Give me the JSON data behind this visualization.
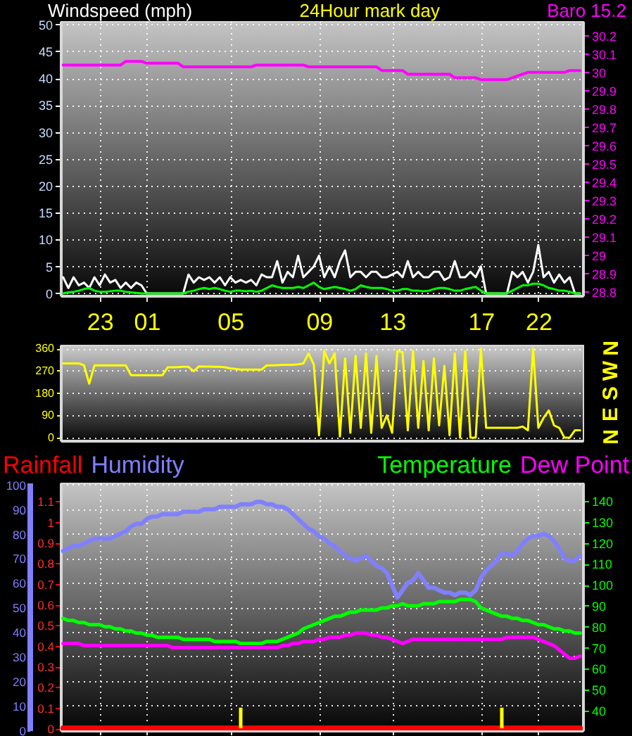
{
  "chart_data": [
    {
      "type": "line",
      "legend": "top",
      "grid": true,
      "annotations": [
        "24Hour mark day"
      ],
      "categories": [
        null,
        null,
        null,
        null,
        null,
        null,
        null,
        "23",
        null,
        null,
        null,
        null,
        null,
        null,
        null,
        null,
        "01",
        null,
        null,
        null,
        null,
        null,
        null,
        null,
        null,
        null,
        null,
        null,
        null,
        null,
        null,
        null,
        "05",
        null,
        null,
        null,
        null,
        null,
        null,
        null,
        null,
        null,
        null,
        null,
        null,
        null,
        null,
        null,
        null,
        "09",
        null,
        null,
        null,
        null,
        null,
        null,
        null,
        null,
        null,
        null,
        null,
        null,
        null,
        "13",
        null,
        null,
        null,
        null,
        null,
        null,
        null,
        null,
        null,
        null,
        null,
        null,
        null,
        null,
        null,
        null,
        "17",
        null,
        null,
        null,
        null,
        null,
        null,
        null,
        null,
        null,
        null,
        "22",
        null,
        null,
        null,
        null,
        null,
        null,
        null,
        null
      ],
      "ylim": [
        -0.4,
        50.6
      ],
      "yticks": [
        0,
        5,
        10,
        15,
        20,
        25,
        30,
        35,
        40,
        45,
        50
      ],
      "y2lim": [
        28.78,
        30.28
      ],
      "y2ticks": [
        28.8,
        28.9,
        29,
        29.1,
        29.2,
        29.3,
        29.4,
        29.5,
        29.6,
        29.7,
        29.8,
        29.9,
        30,
        30.1,
        30.2
      ],
      "series": [
        {
          "name": "Windspeed (mph)",
          "color": "#ffffff",
          "values": [
            3,
            1,
            3,
            1.5,
            2,
            1,
            3,
            1.5,
            3.5,
            2,
            2.5,
            1,
            2,
            1,
            2,
            1.5,
            0,
            0,
            0,
            0,
            0,
            0,
            0,
            0,
            3.5,
            2,
            3,
            2.5,
            3,
            2,
            3,
            1.5,
            3,
            2,
            2.5,
            2,
            2.5,
            1.5,
            3.5,
            3,
            3,
            6,
            2,
            4,
            3,
            7,
            3,
            4,
            5,
            7,
            3,
            5,
            3,
            6,
            8,
            3,
            4,
            4,
            3,
            4,
            4,
            3,
            3,
            3.5,
            4,
            3,
            6,
            3,
            4,
            3,
            3,
            4,
            4,
            2.5,
            3,
            6,
            3,
            3,
            4,
            3,
            5,
            0,
            0,
            0,
            0,
            0,
            4,
            3,
            4,
            2,
            4,
            9,
            3,
            4,
            2,
            3.5,
            2,
            3,
            0,
            0
          ]
        },
        {
          "color": "#00ff00",
          "values": [
            0,
            0.2,
            0.3,
            0.5,
            0.8,
            1,
            0.5,
            0.3,
            0.3,
            0.4,
            0.5,
            0.5,
            0.3,
            0.2,
            0.1,
            0,
            0,
            0,
            0,
            0,
            0,
            0,
            0,
            0,
            0.3,
            0.5,
            0.8,
            1,
            0.8,
            1,
            0.8,
            0.5,
            0.3,
            0.5,
            0.5,
            0.4,
            0.5,
            0.3,
            0.5,
            1,
            1.5,
            1.2,
            1,
            1,
            1,
            1.2,
            1,
            1.5,
            2,
            1.2,
            0.8,
            1,
            1.2,
            1,
            0.8,
            0.5,
            0.8,
            1.5,
            1.2,
            1,
            1,
            1,
            0.8,
            0.5,
            0.5,
            0.8,
            0.8,
            0.5,
            0.5,
            0.4,
            0.5,
            0.8,
            1,
            1,
            0.8,
            0.5,
            0.5,
            0.8,
            1,
            1.2,
            0.5,
            0,
            0,
            0,
            0,
            0,
            0.5,
            1,
            1.5,
            1.5,
            1.8,
            1.8,
            1.5,
            1,
            0.8,
            0.5,
            0.5,
            0.3,
            0,
            0
          ]
        },
        {
          "name": "Baro 15.2",
          "color": "#ff00ff",
          "axis": "y2",
          "values": [
            30.04,
            30.04,
            30.04,
            30.04,
            30.04,
            30.04,
            30.04,
            30.04,
            30.04,
            30.04,
            30.04,
            30.04,
            30.06,
            30.06,
            30.06,
            30.06,
            30.05,
            30.05,
            30.05,
            30.05,
            30.05,
            30.05,
            30.05,
            30.03,
            30.03,
            30.03,
            30.03,
            30.03,
            30.03,
            30.03,
            30.03,
            30.03,
            30.03,
            30.03,
            30.03,
            30.03,
            30.03,
            30.04,
            30.04,
            30.04,
            30.04,
            30.04,
            30.04,
            30.04,
            30.04,
            30.04,
            30.04,
            30.03,
            30.03,
            30.03,
            30.03,
            30.03,
            30.03,
            30.03,
            30.03,
            30.03,
            30.03,
            30.03,
            30.03,
            30.03,
            30.03,
            30.01,
            30.01,
            30.01,
            30.01,
            30.01,
            29.99,
            29.99,
            29.99,
            29.99,
            29.99,
            29.99,
            29.99,
            29.99,
            29.99,
            29.97,
            29.97,
            29.97,
            29.97,
            29.97,
            29.96,
            29.96,
            29.96,
            29.96,
            29.96,
            29.96,
            29.97,
            29.98,
            29.99,
            30,
            30,
            30,
            30,
            30,
            30,
            30,
            30,
            30.01,
            30.01,
            30.01
          ]
        }
      ]
    },
    {
      "type": "line",
      "grid": "y",
      "tick_labels": "y",
      "categories": [
        null,
        null,
        null,
        null,
        null,
        null,
        null,
        "23",
        null,
        null,
        null,
        null,
        null,
        null,
        null,
        null,
        "01",
        null,
        null,
        null,
        null,
        null,
        null,
        null,
        null,
        null,
        null,
        null,
        null,
        null,
        null,
        null,
        "05",
        null,
        null,
        null,
        null,
        null,
        null,
        null,
        null,
        null,
        null,
        null,
        null,
        null,
        null,
        null,
        null,
        "09",
        null,
        null,
        null,
        null,
        null,
        null,
        null,
        null,
        null,
        null,
        null,
        null,
        null,
        "13",
        null,
        null,
        null,
        null,
        null,
        null,
        null,
        null,
        null,
        null,
        null,
        null,
        null,
        null,
        null,
        null,
        "17",
        null,
        null,
        null,
        null,
        null,
        null,
        null,
        null,
        null,
        null,
        "22",
        null,
        null,
        null,
        null,
        null,
        null,
        null,
        null
      ],
      "ylim": [
        -11,
        375
      ],
      "yticks": [
        0,
        90,
        180,
        270,
        360
      ],
      "annotations": [
        "N",
        "W",
        "S",
        "E",
        "N"
      ],
      "series": [
        {
          "color": "#ffff00",
          "values": [
            300,
            300,
            300,
            300,
            292,
            218,
            292,
            292,
            292,
            292,
            292,
            292,
            292,
            252,
            252,
            252,
            252,
            252,
            252,
            252,
            284,
            284,
            285,
            286,
            286,
            268,
            288,
            287,
            287,
            286,
            286,
            284,
            280,
            278,
            275,
            275,
            275,
            275,
            275,
            292,
            292,
            293,
            294,
            294,
            294,
            296,
            300,
            340,
            296,
            10,
            350,
            300,
            340,
            5,
            320,
            20,
            330,
            40,
            340,
            20,
            330,
            40,
            90,
            20,
            350,
            345,
            30,
            350,
            40,
            310,
            30,
            320,
            50,
            290,
            10,
            340,
            0,
            350,
            0,
            0,
            360,
            40,
            40,
            40,
            40,
            40,
            40,
            40,
            45,
            30,
            360,
            40,
            80,
            110,
            50,
            40,
            0,
            0,
            30,
            30
          ]
        }
      ]
    },
    {
      "type": "line",
      "legend": "top",
      "grid": true,
      "tick_labels": "y",
      "categories": [
        null,
        null,
        null,
        null,
        null,
        null,
        null,
        "23",
        null,
        null,
        null,
        null,
        null,
        null,
        null,
        null,
        "01",
        null,
        null,
        null,
        null,
        null,
        null,
        null,
        null,
        null,
        null,
        null,
        null,
        null,
        null,
        null,
        "05",
        null,
        null,
        null,
        null,
        null,
        null,
        null,
        null,
        null,
        null,
        null,
        null,
        null,
        null,
        null,
        null,
        "09",
        null,
        null,
        null,
        null,
        null,
        null,
        null,
        null,
        null,
        null,
        null,
        null,
        null,
        "13",
        null,
        null,
        null,
        null,
        null,
        null,
        null,
        null,
        null,
        null,
        null,
        null,
        null,
        null,
        null,
        null,
        "17",
        null,
        null,
        null,
        null,
        null,
        null,
        null,
        null,
        null,
        null,
        "22",
        null,
        null,
        null,
        null,
        null,
        null,
        null,
        null
      ],
      "ylim": [
        -0.1,
        100.8
      ],
      "yticks": [
        0,
        10,
        20,
        30,
        40,
        50,
        60,
        70,
        80,
        90,
        100
      ],
      "y2lim": [
        -0.01,
        1.19
      ],
      "y2ticks": [
        0,
        0.1,
        0.2,
        0.3,
        0.4,
        0.5,
        0.6,
        0.7,
        0.8,
        0.9,
        1,
        1.1
      ],
      "y3lim": [
        30.6,
        148.7
      ],
      "y3ticks": [
        40,
        50,
        60,
        70,
        80,
        90,
        100,
        110,
        120,
        130,
        140
      ],
      "series": [
        {
          "name": "Rainfall",
          "color": "#ff0000",
          "axis": "y2",
          "values": [
            0,
            0,
            0,
            0,
            0,
            0,
            0,
            0,
            0,
            0,
            0,
            0,
            0,
            0,
            0,
            0,
            0,
            0,
            0,
            0,
            0,
            0,
            0,
            0,
            0,
            0,
            0,
            0,
            0,
            0,
            0,
            0,
            0,
            0,
            0,
            0,
            0,
            0,
            0,
            0,
            0,
            0,
            0,
            0,
            0,
            0,
            0,
            0,
            0,
            0,
            0,
            0,
            0,
            0,
            0,
            0,
            0,
            0,
            0,
            0,
            0,
            0,
            0,
            0,
            0,
            0,
            0,
            0,
            0,
            0,
            0,
            0,
            0,
            0,
            0,
            0,
            0,
            0,
            0,
            0,
            0,
            0,
            0,
            0,
            0,
            0,
            0,
            0,
            0,
            0,
            0,
            0,
            0,
            0,
            0,
            0,
            0,
            0,
            0,
            0
          ]
        },
        {
          "name": "Humidity",
          "color": "#8080ff",
          "values": [
            73,
            74,
            75,
            75,
            76,
            77,
            78,
            78,
            78,
            78,
            79,
            80,
            81,
            83,
            84,
            84,
            86,
            87,
            87,
            88,
            88,
            88,
            88,
            89,
            89,
            89,
            89,
            90,
            90,
            90,
            91,
            91,
            91,
            91,
            92,
            92,
            92,
            93,
            93,
            92,
            92,
            91,
            91,
            90,
            88,
            86,
            84,
            82,
            81,
            79,
            78,
            76,
            75,
            73,
            71,
            70,
            69,
            70,
            71,
            69,
            67,
            66,
            64,
            59,
            54,
            57,
            60,
            61,
            64,
            61,
            58,
            58,
            57,
            56,
            56,
            55,
            56,
            56,
            55,
            57,
            62,
            65,
            67,
            69,
            72,
            72,
            71,
            73,
            76,
            78,
            79,
            79,
            80,
            79,
            77,
            74,
            70,
            69,
            69,
            71
          ]
        },
        {
          "name": "Temperature",
          "color": "#00ff00",
          "axis": "y3",
          "values": [
            84,
            83,
            83,
            82,
            82,
            81,
            81,
            81,
            80,
            80,
            79,
            79,
            78,
            78,
            77,
            77,
            76,
            76,
            75,
            75,
            75,
            75,
            75,
            74,
            74,
            74,
            74,
            74,
            74,
            73,
            73,
            73,
            73,
            73,
            72,
            72,
            72,
            72,
            72,
            73,
            73,
            73,
            74,
            75,
            76,
            77,
            79,
            80,
            81,
            82,
            83,
            84,
            85,
            85,
            86,
            87,
            87,
            88,
            88,
            88,
            88,
            89,
            89,
            90,
            90,
            91,
            90,
            90,
            90,
            91,
            91,
            91,
            92,
            92,
            92,
            92,
            93,
            93,
            93,
            92,
            89,
            88,
            87,
            86,
            85,
            85,
            84,
            84,
            83,
            83,
            82,
            81,
            81,
            80,
            79,
            79,
            78,
            78,
            77,
            77
          ]
        },
        {
          "name": "Dew Point",
          "color": "#ff00ff",
          "axis": "y3",
          "values": [
            72,
            72,
            72,
            72,
            71,
            71,
            71,
            71,
            71,
            71,
            71,
            71,
            71,
            71,
            71,
            71,
            71,
            71,
            71,
            71,
            71,
            70,
            70,
            70,
            70,
            70,
            70,
            70,
            70,
            70,
            70,
            70,
            70,
            70,
            70,
            70,
            70,
            70,
            70,
            70,
            70,
            70,
            71,
            71,
            72,
            72,
            73,
            73,
            73,
            74,
            74,
            75,
            75,
            75,
            76,
            76,
            77,
            77,
            77,
            76,
            76,
            75,
            75,
            74,
            73,
            72,
            73,
            74,
            74,
            74,
            74,
            74,
            74,
            74,
            74,
            74,
            74,
            74,
            74,
            74,
            74,
            74,
            74,
            74,
            74,
            75,
            75,
            75,
            75,
            75,
            75,
            74,
            73,
            72,
            71,
            69,
            67,
            65,
            65,
            66
          ]
        },
        {
          "type": "bar",
          "color": "#ffff00",
          "axis": "y2",
          "values": [
            null,
            null,
            null,
            null,
            null,
            null,
            null,
            null,
            null,
            null,
            null,
            null,
            null,
            null,
            null,
            null,
            null,
            null,
            null,
            null,
            null,
            null,
            null,
            null,
            null,
            null,
            null,
            null,
            null,
            null,
            null,
            null,
            null,
            null,
            0.1,
            null,
            null,
            null,
            null,
            null,
            null,
            null,
            null,
            null,
            null,
            null,
            null,
            null,
            null,
            null,
            null,
            null,
            null,
            null,
            null,
            null,
            null,
            null,
            null,
            null,
            null,
            null,
            null,
            null,
            null,
            null,
            null,
            null,
            null,
            null,
            null,
            null,
            null,
            null,
            null,
            null,
            null,
            null,
            null,
            null,
            null,
            null,
            null,
            null,
            0.1,
            null,
            null,
            null,
            null,
            null,
            null,
            null,
            null,
            null,
            null,
            null,
            null,
            null,
            null,
            null
          ]
        }
      ]
    }
  ]
}
